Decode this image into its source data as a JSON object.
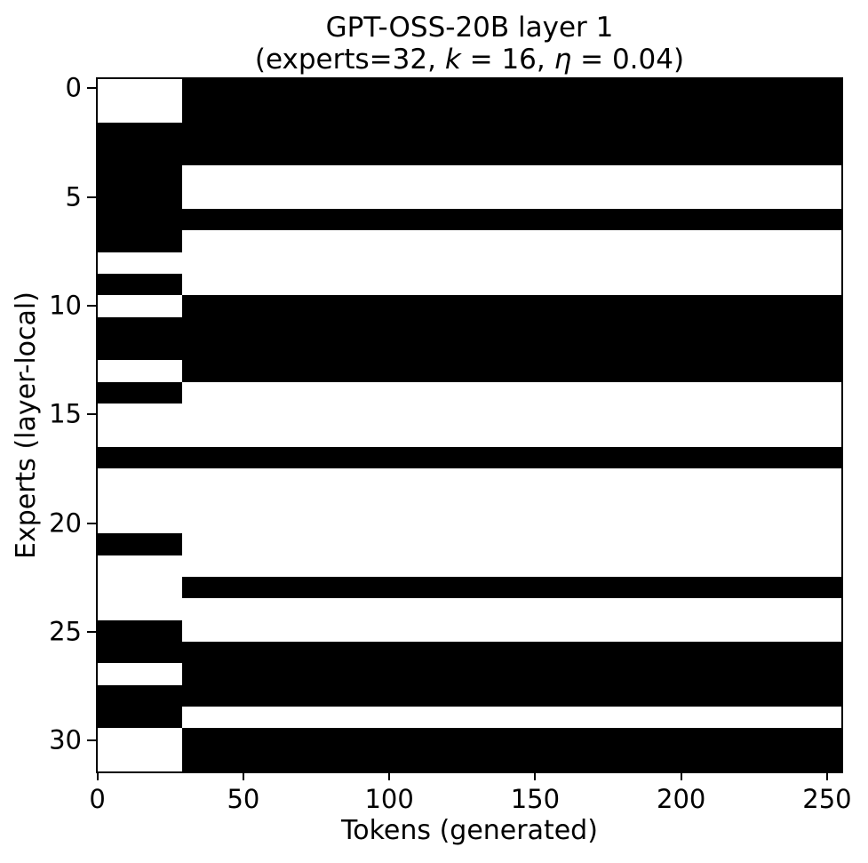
{
  "chart_data": {
    "type": "heatmap",
    "title": "GPT-OSS-20B layer 1",
    "subtitle": {
      "pre": "(experts=32, ",
      "k": "k",
      "mid": " = 16, ",
      "eta": "η",
      "post": " = 0.04)"
    },
    "model": "GPT-OSS-20B",
    "layer": 1,
    "experts": 32,
    "k": 16,
    "eta": 0.04,
    "xlabel": "Tokens (generated)",
    "ylabel": "Experts (layer-local)",
    "x_ticks": [
      0,
      50,
      100,
      150,
      200,
      250
    ],
    "y_ticks": [
      0,
      5,
      10,
      15,
      20,
      25,
      30
    ],
    "n_tokens": 256,
    "n_experts": 32,
    "x_range": [
      -0.5,
      255.5
    ],
    "y_range": [
      31.5,
      -0.5
    ],
    "grid": false,
    "legend": false,
    "colors": {
      "active": "#000000",
      "inactive": "#ffffff",
      "background": "#ffffff"
    },
    "early_segment": {
      "token_start": 0,
      "token_end": 28,
      "n_tokens": 29
    },
    "late_segment": {
      "token_start": 29,
      "token_end": 255,
      "n_tokens": 227
    },
    "early_active": [
      0,
      0,
      1,
      1,
      1,
      1,
      1,
      1,
      0,
      1,
      0,
      1,
      1,
      0,
      1,
      0,
      0,
      1,
      0,
      0,
      0,
      1,
      0,
      0,
      0,
      1,
      1,
      0,
      1,
      1,
      0,
      0
    ],
    "late_active": [
      1,
      1,
      1,
      1,
      0,
      0,
      1,
      0,
      0,
      0,
      1,
      1,
      1,
      1,
      0,
      0,
      0,
      1,
      0,
      0,
      0,
      0,
      0,
      1,
      0,
      0,
      1,
      1,
      1,
      0,
      1,
      1
    ]
  }
}
